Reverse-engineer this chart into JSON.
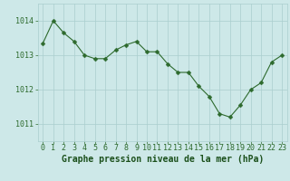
{
  "x": [
    0,
    1,
    2,
    3,
    4,
    5,
    6,
    7,
    8,
    9,
    10,
    11,
    12,
    13,
    14,
    15,
    16,
    17,
    18,
    19,
    20,
    21,
    22,
    23
  ],
  "y": [
    1013.35,
    1014.0,
    1013.65,
    1013.4,
    1013.0,
    1012.9,
    1012.9,
    1013.15,
    1013.3,
    1013.4,
    1013.1,
    1013.1,
    1012.75,
    1012.5,
    1012.5,
    1012.1,
    1011.8,
    1011.3,
    1011.2,
    1011.55,
    1012.0,
    1012.2,
    1012.8,
    1013.0
  ],
  "line_color": "#2d6a2d",
  "marker": "D",
  "marker_size": 2.5,
  "bg_color": "#cde8e8",
  "grid_color": "#aacece",
  "xlabel": "Graphe pression niveau de la mer (hPa)",
  "xlabel_color": "#1a4f1a",
  "ylabel_ticks": [
    1011,
    1012,
    1013,
    1014
  ],
  "xlim": [
    -0.5,
    23.5
  ],
  "ylim": [
    1010.5,
    1014.5
  ],
  "xtick_labels": [
    "0",
    "1",
    "2",
    "3",
    "4",
    "5",
    "6",
    "7",
    "8",
    "9",
    "10",
    "11",
    "12",
    "13",
    "14",
    "15",
    "16",
    "17",
    "18",
    "19",
    "20",
    "21",
    "22",
    "23"
  ],
  "tick_color": "#2d6a2d",
  "axis_label_fontsize": 7,
  "tick_fontsize": 6
}
